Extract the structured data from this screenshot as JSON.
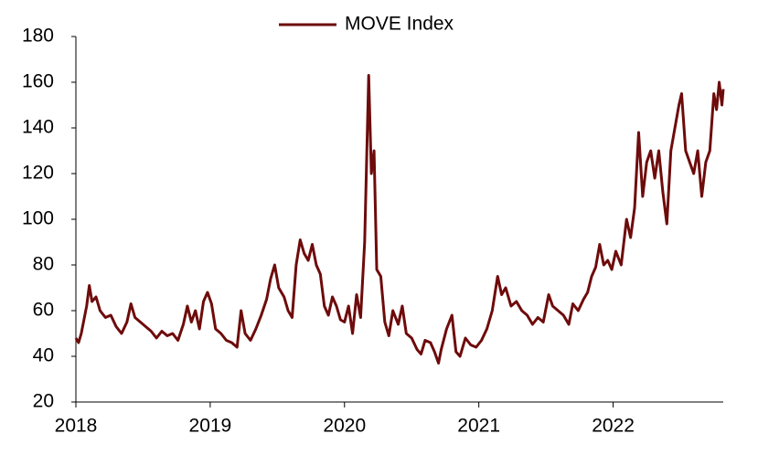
{
  "chart_data": {
    "type": "line",
    "x": [
      2018.0,
      2018.02,
      2018.04,
      2018.06,
      2018.08,
      2018.1,
      2018.12,
      2018.15,
      2018.18,
      2018.22,
      2018.26,
      2018.3,
      2018.34,
      2018.38,
      2018.41,
      2018.44,
      2018.48,
      2018.52,
      2018.56,
      2018.6,
      2018.64,
      2018.68,
      2018.72,
      2018.76,
      2018.8,
      2018.83,
      2018.86,
      2018.89,
      2018.92,
      2018.95,
      2018.98,
      2019.01,
      2019.04,
      2019.08,
      2019.12,
      2019.16,
      2019.2,
      2019.23,
      2019.26,
      2019.3,
      2019.34,
      2019.38,
      2019.42,
      2019.45,
      2019.48,
      2019.51,
      2019.55,
      2019.58,
      2019.61,
      2019.64,
      2019.67,
      2019.7,
      2019.73,
      2019.76,
      2019.79,
      2019.82,
      2019.85,
      2019.88,
      2019.91,
      2019.94,
      2019.97,
      2020.0,
      2020.03,
      2020.06,
      2020.09,
      2020.12,
      2020.15,
      2020.18,
      2020.2,
      2020.22,
      2020.24,
      2020.27,
      2020.3,
      2020.33,
      2020.36,
      2020.4,
      2020.43,
      2020.46,
      2020.5,
      2020.54,
      2020.57,
      2020.6,
      2020.64,
      2020.67,
      2020.7,
      2020.72,
      2020.76,
      2020.8,
      2020.83,
      2020.86,
      2020.9,
      2020.94,
      2020.98,
      2021.02,
      2021.06,
      2021.1,
      2021.14,
      2021.17,
      2021.2,
      2021.24,
      2021.28,
      2021.32,
      2021.36,
      2021.4,
      2021.44,
      2021.48,
      2021.52,
      2021.55,
      2021.59,
      2021.63,
      2021.67,
      2021.7,
      2021.74,
      2021.78,
      2021.81,
      2021.84,
      2021.87,
      2021.9,
      2021.93,
      2021.96,
      2021.99,
      2022.02,
      2022.06,
      2022.1,
      2022.13,
      2022.16,
      2022.19,
      2022.22,
      2022.25,
      2022.28,
      2022.31,
      2022.34,
      2022.37,
      2022.4,
      2022.43,
      2022.46,
      2022.49,
      2022.51,
      2022.54,
      2022.57,
      2022.6,
      2022.63,
      2022.66,
      2022.69,
      2022.72,
      2022.75,
      2022.77,
      2022.79,
      2022.81,
      2022.82
    ],
    "series": [
      {
        "name": "MOVE Index",
        "color": "#6e0b0b",
        "values": [
          48,
          46,
          50,
          56,
          62,
          71,
          64,
          66,
          60,
          57,
          58,
          53,
          50,
          55,
          63,
          57,
          55,
          53,
          51,
          48,
          51,
          49,
          50,
          47,
          54,
          62,
          55,
          60,
          52,
          64,
          68,
          63,
          52,
          50,
          47,
          46,
          44,
          60,
          50,
          47,
          52,
          58,
          65,
          74,
          80,
          70,
          66,
          60,
          57,
          80,
          91,
          85,
          82,
          89,
          80,
          76,
          62,
          58,
          66,
          62,
          56,
          55,
          62,
          50,
          67,
          57,
          90,
          163,
          120,
          130,
          78,
          75,
          55,
          49,
          60,
          54,
          62,
          50,
          48,
          43,
          41,
          47,
          46,
          42,
          37,
          43,
          52,
          58,
          42,
          40,
          48,
          45,
          44,
          47,
          52,
          60,
          75,
          67,
          70,
          62,
          64,
          60,
          58,
          54,
          57,
          55,
          67,
          62,
          60,
          58,
          54,
          63,
          60,
          65,
          68,
          75,
          79,
          89,
          80,
          82,
          78,
          86,
          80,
          100,
          92,
          105,
          138,
          110,
          125,
          130,
          118,
          130,
          112,
          98,
          130,
          140,
          150,
          155,
          130,
          125,
          120,
          130,
          110,
          125,
          130,
          155,
          148,
          160,
          150,
          157
        ]
      }
    ],
    "xlim": [
      2018,
      2022.82
    ],
    "xticks": [
      2018,
      2019,
      2020,
      2021,
      2022
    ],
    "ylim": [
      20,
      180
    ],
    "yticks": [
      20,
      40,
      60,
      80,
      100,
      120,
      140,
      160,
      180
    ],
    "legend": "top",
    "grid": false
  }
}
